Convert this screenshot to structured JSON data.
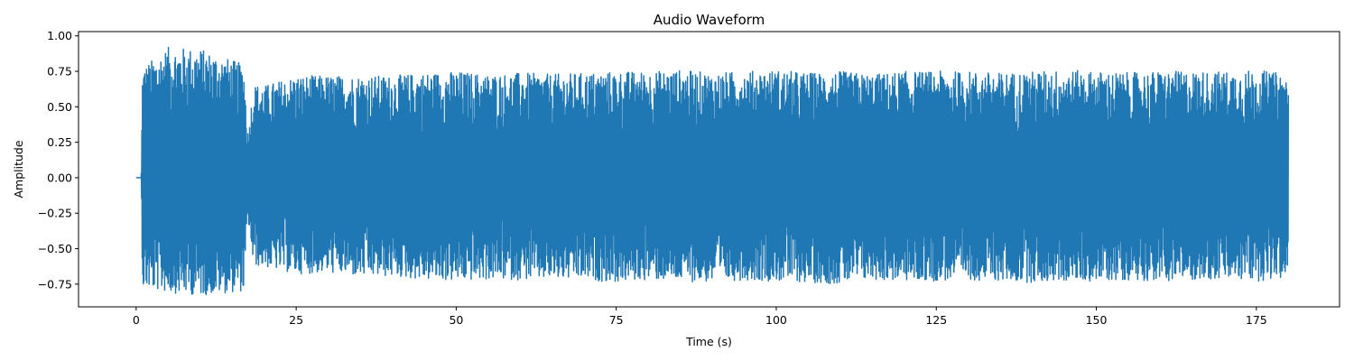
{
  "chart_data": {
    "type": "line",
    "title": "Audio Waveform",
    "xlabel": "Time (s)",
    "ylabel": "Amplitude",
    "xlim": [
      -9,
      188
    ],
    "ylim": [
      -0.91,
      1.03
    ],
    "xticks": [
      0,
      25,
      50,
      75,
      100,
      125,
      150,
      175
    ],
    "xtick_labels": [
      "0",
      "25",
      "50",
      "75",
      "100",
      "125",
      "150",
      "175"
    ],
    "yticks": [
      -0.75,
      -0.5,
      -0.25,
      0.0,
      0.25,
      0.5,
      0.75,
      1.0
    ],
    "ytick_labels": [
      "−0.75",
      "−0.50",
      "−0.25",
      "0.00",
      "0.25",
      "0.50",
      "0.75",
      "1.00"
    ],
    "grid": false,
    "series": [
      {
        "color": "#1f77b4",
        "x": [
          0.0,
          0.8,
          1.0,
          5.0,
          10.0,
          16.8,
          17.5,
          18.3,
          20.0,
          25.0,
          30.0,
          35.0,
          40.0,
          45.0,
          50.0,
          55.0,
          60.0,
          65.0,
          70.0,
          75.0,
          80.0,
          85.0,
          90.0,
          95.0,
          100.0,
          105.0,
          110.0,
          115.0,
          120.0,
          125.0,
          130.0,
          135.0,
          140.0,
          145.0,
          150.0,
          155.0,
          160.0,
          165.0,
          170.0,
          175.0,
          180.0
        ],
        "envelope_max": [
          0.0,
          0.0,
          0.78,
          0.92,
          0.91,
          0.8,
          0.3,
          0.66,
          0.65,
          0.72,
          0.72,
          0.72,
          0.72,
          0.74,
          0.75,
          0.73,
          0.74,
          0.73,
          0.74,
          0.75,
          0.75,
          0.76,
          0.74,
          0.75,
          0.76,
          0.74,
          0.75,
          0.73,
          0.75,
          0.75,
          0.75,
          0.74,
          0.75,
          0.76,
          0.75,
          0.74,
          0.75,
          0.75,
          0.75,
          0.76,
          0.73
        ],
        "envelope_min": [
          0.0,
          0.0,
          -0.78,
          -0.81,
          -0.83,
          -0.8,
          -0.3,
          -0.62,
          -0.63,
          -0.68,
          -0.67,
          -0.7,
          -0.7,
          -0.72,
          -0.73,
          -0.72,
          -0.72,
          -0.72,
          -0.72,
          -0.74,
          -0.72,
          -0.73,
          -0.74,
          -0.72,
          -0.73,
          -0.74,
          -0.75,
          -0.72,
          -0.73,
          -0.73,
          -0.72,
          -0.73,
          -0.74,
          -0.73,
          -0.73,
          -0.72,
          -0.73,
          -0.72,
          -0.72,
          -0.73,
          -0.71
        ]
      }
    ]
  }
}
